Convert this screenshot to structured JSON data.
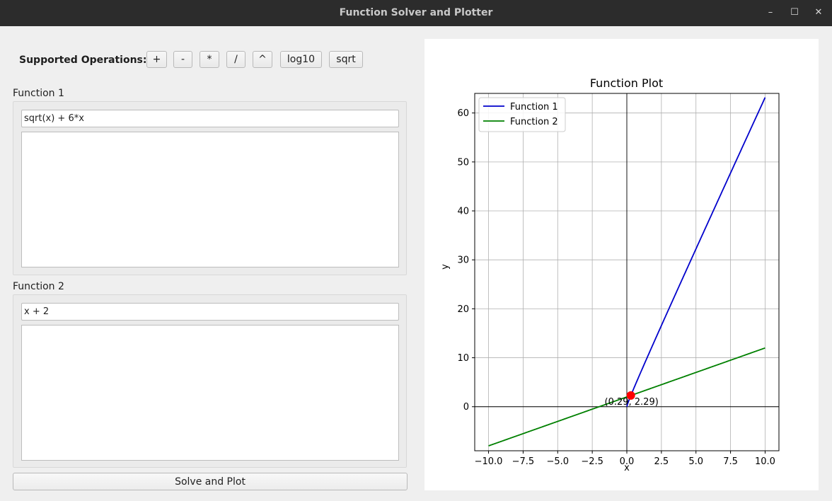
{
  "window": {
    "title": "Function Solver and Plotter",
    "controls": {
      "minimize": "–",
      "maximize": "☐",
      "close": "✕"
    }
  },
  "operations": {
    "label": "Supported Operations:",
    "buttons": [
      "+",
      "-",
      "*",
      "/",
      "^",
      "log10",
      "sqrt"
    ]
  },
  "function1": {
    "label": "Function 1",
    "value": "sqrt(x) + 6*x",
    "output": ""
  },
  "function2": {
    "label": "Function 2",
    "value": "x + 2",
    "output": ""
  },
  "solve_button": "Solve and Plot",
  "chart_data": {
    "type": "line",
    "title": "Function Plot",
    "xlabel": "x",
    "ylabel": "y",
    "xlim": [
      -11,
      11
    ],
    "ylim": [
      -9,
      64
    ],
    "xticks": [
      -10.0,
      -7.5,
      -5.0,
      -2.5,
      0.0,
      2.5,
      5.0,
      7.5,
      10.0
    ],
    "xtick_labels": [
      "−10.0",
      "−7.5",
      "−5.0",
      "−2.5",
      "0.0",
      "2.5",
      "5.0",
      "7.5",
      "10.0"
    ],
    "yticks": [
      0,
      10,
      20,
      30,
      40,
      50,
      60
    ],
    "ytick_labels": [
      "0",
      "10",
      "20",
      "30",
      "40",
      "50",
      "60"
    ],
    "grid": true,
    "legend_position": "top-left",
    "series": [
      {
        "name": "Function 1",
        "color": "#0000cc",
        "function": "sqrt(x) + 6*x",
        "x_range": [
          0,
          10
        ]
      },
      {
        "name": "Function 2",
        "color": "#008000",
        "function": "x + 2",
        "x_range": [
          -10,
          10
        ]
      }
    ],
    "intersection": {
      "x": 0.29,
      "y": 2.29,
      "label": "(0.29, 2.29)",
      "color": "#ff0000"
    }
  }
}
